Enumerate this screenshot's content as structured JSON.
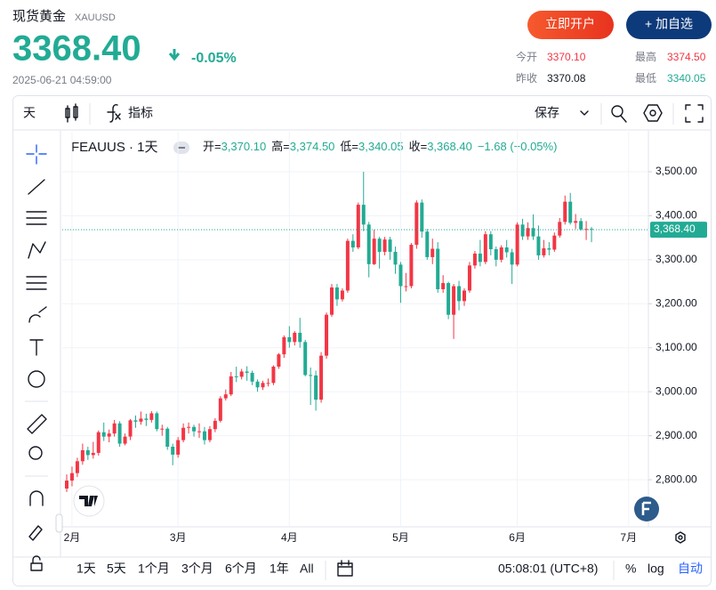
{
  "header": {
    "title": "现货黄金",
    "symbol": "XAUUSD",
    "price": "3368.40",
    "change": "-0.05%",
    "datetime": "2025-06-21 04:59:00",
    "buttons": [
      "立即开户",
      "+ 加自选"
    ],
    "stats": [
      {
        "label": "今开",
        "value": "3370.10"
      },
      {
        "label": "最高",
        "value": "3374.50"
      },
      {
        "label": "昨收",
        "value": "3370.08"
      },
      {
        "label": "最低",
        "value": "3340.05"
      }
    ]
  },
  "toolbar": {
    "interval": "天",
    "indicators": "指标",
    "save": "保存"
  },
  "chart_data": {
    "type": "candlestick",
    "title": "FEAUUS · 1天",
    "legend": [
      {
        "label": "开=",
        "value": "3,370.10"
      },
      {
        "label": "高=",
        "value": "3,374.50"
      },
      {
        "label": "低=",
        "value": "3,340.05"
      },
      {
        "label": "收=",
        "value": "3,368.40"
      }
    ],
    "change": "−1.68 (−0.05%)",
    "categories": [
      null,
      "2月",
      null,
      null,
      null,
      null,
      null,
      null,
      null,
      null,
      null,
      null,
      null,
      null,
      null,
      null,
      null,
      null,
      null,
      null,
      null,
      "3月",
      null,
      null,
      null,
      null,
      null,
      null,
      null,
      null,
      null,
      null,
      null,
      null,
      null,
      null,
      null,
      null,
      null,
      null,
      null,
      null,
      "4月",
      null,
      null,
      null,
      null,
      null,
      null,
      null,
      null,
      null,
      null,
      null,
      null,
      null,
      null,
      null,
      null,
      null,
      null,
      null,
      null,
      "5月",
      null,
      null,
      null,
      null,
      null,
      null,
      null,
      null,
      null,
      null,
      null,
      null,
      null,
      null,
      null,
      null,
      null,
      null,
      null,
      null,
      null,
      "6月",
      null,
      null,
      null,
      null,
      null,
      null,
      null,
      null,
      null,
      null,
      null,
      null,
      null,
      null,
      null,
      null,
      null,
      null,
      null,
      null,
      "7月"
    ],
    "open": [
      2780,
      2798,
      2815,
      2842,
      2867,
      2856,
      2861,
      2908,
      2898,
      2905,
      2928,
      2882,
      2898,
      2935,
      2932,
      2939,
      2936,
      2951,
      2915,
      2916,
      2875,
      2857,
      2890,
      2918,
      2920,
      2910,
      2910,
      2890,
      2915,
      2934,
      2985,
      2994,
      3035,
      3034,
      3046,
      3043,
      3023,
      3010,
      3020,
      3020,
      3057,
      3085,
      3124,
      3113,
      3134,
      3113,
      3038,
      3037,
      2982,
      3082,
      3175,
      3237,
      3210,
      3230,
      3343,
      3328,
      3425,
      3380,
      3290,
      3348,
      3318,
      3346,
      3318,
      3289,
      3240,
      3240,
      3334,
      3430,
      3364,
      3306,
      3325,
      3233,
      3247,
      3175,
      3240,
      3206,
      3230,
      3287,
      3314,
      3295,
      3358,
      3324,
      3300,
      3328,
      3317,
      3289,
      3380,
      3353,
      3372,
      3353,
      3310,
      3326,
      3323,
      3355,
      3386,
      3432,
      3384,
      3388,
      3369,
      3370.1,
      null,
      null,
      null,
      null,
      null,
      null,
      null
    ],
    "high": [
      2812,
      2830,
      2850,
      2882,
      2875,
      2886,
      2912,
      2930,
      2914,
      2936,
      2933,
      2905,
      2938,
      2946,
      2955,
      2950,
      2956,
      2955,
      2925,
      2920,
      2882,
      2897,
      2928,
      2930,
      2925,
      2928,
      2920,
      2922,
      2940,
      2990,
      3005,
      3045,
      3057,
      3052,
      3058,
      3048,
      3028,
      3025,
      3030,
      3060,
      3088,
      3128,
      3149,
      3138,
      3168,
      3118,
      3055,
      3048,
      3090,
      3180,
      3245,
      3245,
      3235,
      3348,
      3358,
      3430,
      3500,
      3386,
      3368,
      3352,
      3352,
      3352,
      3330,
      3295,
      3270,
      3338,
      3435,
      3437,
      3370,
      3348,
      3340,
      3265,
      3250,
      3245,
      3252,
      3235,
      3295,
      3320,
      3345,
      3365,
      3365,
      3330,
      3333,
      3345,
      3325,
      3385,
      3393,
      3385,
      3403,
      3378,
      3345,
      3340,
      3362,
      3395,
      3446,
      3452,
      3404,
      3395,
      3388,
      3374.5,
      null,
      null,
      null,
      null,
      null,
      null,
      null
    ],
    "low": [
      2772,
      2785,
      2806,
      2834,
      2845,
      2848,
      2855,
      2888,
      2885,
      2898,
      2875,
      2878,
      2890,
      2918,
      2925,
      2922,
      2930,
      2910,
      2900,
      2868,
      2833,
      2850,
      2885,
      2905,
      2898,
      2895,
      2880,
      2885,
      2908,
      2930,
      2980,
      2990,
      3022,
      3028,
      3025,
      3015,
      3000,
      3004,
      3012,
      3015,
      3052,
      3077,
      3100,
      3105,
      3100,
      3035,
      2970,
      2957,
      2975,
      3075,
      3170,
      3195,
      3205,
      3225,
      3318,
      3324,
      3365,
      3260,
      3288,
      3280,
      3310,
      3300,
      3268,
      3202,
      3228,
      3235,
      3325,
      3350,
      3300,
      3290,
      3225,
      3225,
      3165,
      3120,
      3185,
      3195,
      3225,
      3280,
      3285,
      3290,
      3310,
      3285,
      3294,
      3305,
      3245,
      3285,
      3345,
      3345,
      3345,
      3300,
      3305,
      3310,
      3318,
      3350,
      3380,
      3380,
      3370,
      3366,
      3345,
      3340.05,
      null,
      null,
      null,
      null,
      null,
      null,
      null
    ],
    "close": [
      2798,
      2815,
      2842,
      2867,
      2856,
      2861,
      2908,
      2898,
      2905,
      2928,
      2882,
      2898,
      2935,
      2932,
      2939,
      2936,
      2951,
      2915,
      2916,
      2875,
      2857,
      2890,
      2918,
      2920,
      2910,
      2910,
      2890,
      2915,
      2934,
      2985,
      2994,
      3035,
      3034,
      3046,
      3043,
      3023,
      3010,
      3020,
      3020,
      3057,
      3085,
      3124,
      3113,
      3134,
      3113,
      3038,
      3037,
      2982,
      3082,
      3175,
      3237,
      3210,
      3230,
      3343,
      3328,
      3425,
      3380,
      3290,
      3348,
      3318,
      3346,
      3318,
      3289,
      3240,
      3240,
      3334,
      3430,
      3364,
      3306,
      3325,
      3233,
      3247,
      3175,
      3240,
      3206,
      3230,
      3287,
      3314,
      3295,
      3358,
      3324,
      3300,
      3328,
      3317,
      3289,
      3380,
      3353,
      3372,
      3353,
      3310,
      3326,
      3323,
      3355,
      3386,
      3432,
      3384,
      3388,
      3369,
      3370,
      3368.4,
      null,
      null,
      null,
      null,
      null,
      null,
      null
    ],
    "up_color": "#f23645",
    "down_color": "#22ab94",
    "ylim": [
      2697,
      3587
    ],
    "yticks": [
      {
        "value": 2800,
        "label": "2,800.00"
      },
      {
        "value": 2900,
        "label": "2,900.00"
      },
      {
        "value": 3000,
        "label": "3,000.00"
      },
      {
        "value": 3100,
        "label": "3,100.00"
      },
      {
        "value": 3200,
        "label": "3,200.00"
      },
      {
        "value": 3300,
        "label": "3,300.00"
      },
      {
        "value": 3400,
        "label": "3,400.00"
      },
      {
        "value": 3500,
        "label": "3,500.00"
      }
    ],
    "grid": true,
    "last_price": {
      "value": 3368.4,
      "label": "3,368.40"
    }
  },
  "bottom_bar": {
    "ranges": [
      "1天",
      "5天",
      "1个月",
      "3个月",
      "6个月",
      "1年",
      "All"
    ],
    "time": "05:08:01 (UTC+8)",
    "percent": "%",
    "log": "log",
    "auto": "自动"
  }
}
